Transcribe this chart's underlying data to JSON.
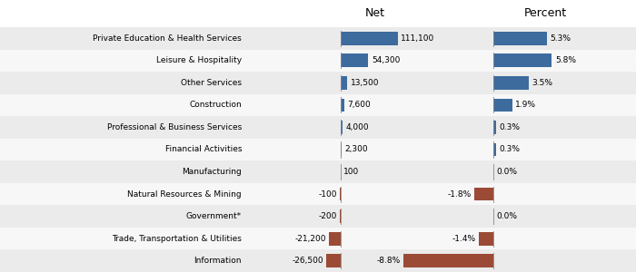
{
  "categories": [
    "Private Education & Health Services",
    "Leisure & Hospitality",
    "Other Services",
    "Construction",
    "Professional & Business Services",
    "Financial Activities",
    "Manufacturing",
    "Natural Resources & Mining",
    "Government*",
    "Trade, Transportation & Utilities",
    "Information"
  ],
  "net_values": [
    111100,
    54300,
    13500,
    7600,
    4000,
    2300,
    100,
    -100,
    -200,
    -21200,
    -26500
  ],
  "pct_values": [
    5.3,
    5.8,
    3.5,
    1.9,
    0.3,
    0.3,
    0.0,
    -1.8,
    0.0,
    -1.4,
    -8.8
  ],
  "net_labels": [
    "111,100",
    "54,300",
    "13,500",
    "7,600",
    "4,000",
    "2,300",
    "100",
    "-100",
    "-200",
    "-21,200",
    "-26,500"
  ],
  "pct_labels": [
    "5.3%",
    "5.8%",
    "3.5%",
    "1.9%",
    "0.3%",
    "0.3%",
    "0.0%",
    "-1.8%",
    "0.0%",
    "-1.4%",
    "-8.8%"
  ],
  "pos_color": "#3D6B9E",
  "neg_color": "#9B4B35",
  "bg_color_odd": "#EBEBEB",
  "bg_color_even": "#F7F7F7",
  "header_net": "Net",
  "header_pct": "Percent"
}
